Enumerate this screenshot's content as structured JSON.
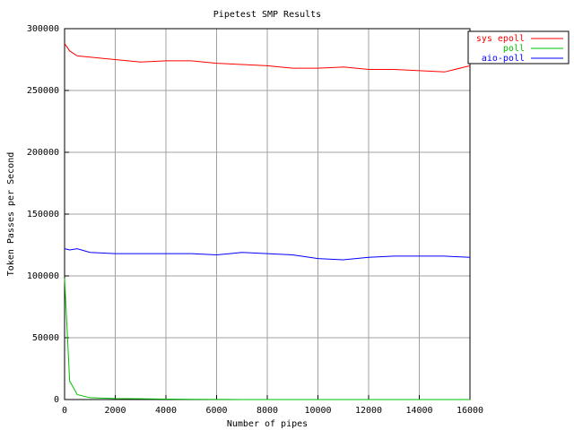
{
  "chart_data": {
    "type": "line",
    "title": "Pipetest SMP Results",
    "x_label": "Number of pipes",
    "y_label": "Token Passes per Second",
    "x": [
      0,
      200,
      500,
      1000,
      2000,
      3000,
      4000,
      5000,
      6000,
      7000,
      8000,
      9000,
      10000,
      11000,
      12000,
      13000,
      14000,
      15000,
      16000
    ],
    "series": [
      {
        "name": "sys epoll",
        "color": "#ff0000",
        "values": [
          288000,
          282000,
          278000,
          277000,
          275000,
          273000,
          274000,
          274000,
          272000,
          271000,
          270000,
          268000,
          268000,
          269000,
          267000,
          267000,
          266000,
          265000,
          270000
        ]
      },
      {
        "name": "poll",
        "color": "#00c000",
        "values": [
          98000,
          15000,
          4000,
          1500,
          800,
          600,
          400,
          200,
          100,
          0,
          0,
          0,
          0,
          0,
          0,
          0,
          0,
          0,
          0
        ]
      },
      {
        "name": "aio-poll",
        "color": "#0000ff",
        "values": [
          122000,
          121000,
          122000,
          119000,
          118000,
          118000,
          118000,
          118000,
          117000,
          119000,
          118000,
          117000,
          114000,
          113000,
          115000,
          116000,
          116000,
          116000,
          115000
        ]
      }
    ],
    "xlim": [
      0,
      16000
    ],
    "xticks": [
      0,
      2000,
      4000,
      6000,
      8000,
      10000,
      12000,
      14000,
      16000
    ],
    "ylim": [
      0,
      300000
    ],
    "yticks": [
      0,
      50000,
      100000,
      150000,
      200000,
      250000,
      300000
    ],
    "grid": true,
    "legend": "top-right"
  }
}
